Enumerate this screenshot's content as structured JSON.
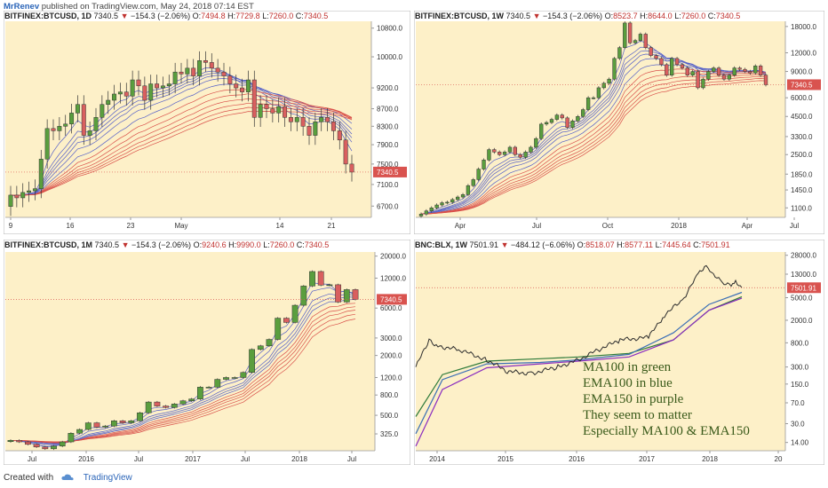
{
  "header": {
    "author": "MrRenev",
    "published": "published on TradingView.com, May 24, 2018 07:14 EST"
  },
  "footer": {
    "created_with": "Created with",
    "brand": "TradingView"
  },
  "colors": {
    "panel_bg": "#fdf0c8",
    "up_candle": "#5a9e3e",
    "down_candle": "#d95f5f",
    "price_tag": "#d9534f",
    "ma_blue": "#5560c8",
    "ma_red": "#d9504a",
    "ma100_green": "#2e7a3a",
    "ema100_blue": "#3b6fb6",
    "ema150_purple": "#8a2cc0",
    "price_line": "#2d2d2d"
  },
  "panels": [
    {
      "id": "btc-1d",
      "symbol": "BITFINEX:BTCUSD, 1D",
      "last": "7340.5",
      "change": "−154.3 (−2.06%)",
      "ohlc": [
        [
          "O:",
          "7494.8"
        ],
        [
          "H:",
          "7729.8"
        ],
        [
          "L:",
          "7260.0"
        ],
        [
          "C:",
          "7340.5"
        ]
      ],
      "price_tag": "7340.5",
      "chart_data": {
        "type": "candlestick",
        "y_ticks": [
          "10800.0",
          "10000.0",
          "9200.0",
          "8700.0",
          "8300.0",
          "7900.0",
          "7500.0",
          "7100.0",
          "6700.0"
        ],
        "x_ticks": [
          "9",
          "16",
          "23",
          "May",
          "14",
          "21"
        ],
        "close": [
          6900,
          6850,
          6950,
          6980,
          7020,
          7600,
          8250,
          8200,
          8300,
          8350,
          8600,
          8800,
          8100,
          8200,
          8500,
          8800,
          8900,
          9050,
          9100,
          9000,
          9400,
          9250,
          8900,
          9300,
          9200,
          9250,
          9300,
          9600,
          9550,
          9700,
          9500,
          9900,
          9850,
          9700,
          9600,
          9500,
          9300,
          9200,
          9100,
          9400,
          8500,
          8800,
          8700,
          8600,
          8750,
          8500,
          8400,
          8500,
          8300,
          8100,
          8400,
          8500,
          8400,
          8200,
          8000,
          7500,
          7340
        ]
      }
    },
    {
      "id": "btc-1w",
      "symbol": "BITFINEX:BTCUSD, 1W",
      "last": "7340.5",
      "change": "−154.3 (−2.06%)",
      "ohlc": [
        [
          "O:",
          "8523.7"
        ],
        [
          "H:",
          "8644.0"
        ],
        [
          "L:",
          "7260.0"
        ],
        [
          "C:",
          "7340.5"
        ]
      ],
      "price_tag": "7340.5",
      "chart_data": {
        "type": "candlestick",
        "y_ticks": [
          "18000.0",
          "12000.0",
          "9000.0",
          "6000.0",
          "4500.0",
          "3300.0",
          "2500.0",
          "1850.0",
          "1450.0",
          "1100.0"
        ],
        "x_ticks": [
          "Apr",
          "Jul",
          "Oct",
          "2018",
          "Apr",
          "Jul"
        ],
        "close": [
          1000,
          1050,
          1100,
          1150,
          1190,
          1200,
          1250,
          1300,
          1350,
          1550,
          1700,
          2000,
          2300,
          2700,
          2600,
          2500,
          2600,
          2800,
          2500,
          2400,
          2600,
          2800,
          3200,
          4000,
          4100,
          4300,
          4600,
          4400,
          3800,
          4200,
          4500,
          5000,
          6000,
          6000,
          7000,
          7500,
          8000,
          11000,
          13000,
          19000,
          14000,
          14500,
          16000,
          13000,
          11500,
          11000,
          10000,
          8500,
          11000,
          10000,
          9500,
          8500,
          9000,
          7000,
          8000,
          9000,
          9500,
          8500,
          8000,
          8500,
          9500,
          9300,
          9000,
          8800,
          9800,
          8500,
          7340
        ]
      }
    },
    {
      "id": "btc-1m",
      "symbol": "BITFINEX:BTCUSD, 1M",
      "last": "7340.5",
      "change": "−154.3 (−2.06%)",
      "ohlc": [
        [
          "O:",
          "9240.6"
        ],
        [
          "H:",
          "9990.0"
        ],
        [
          "L:",
          "7260.0"
        ],
        [
          "C:",
          "7340.5"
        ]
      ],
      "price_tag": "7340.5",
      "chart_data": {
        "type": "candlestick",
        "y_ticks": [
          "20000.0",
          "12000.0",
          "6000.0",
          "3000.0",
          "2000.0",
          "1200.0",
          "800.0",
          "500.0",
          "325.0"
        ],
        "x_ticks": [
          "Jul",
          "2016",
          "Jul",
          "2017",
          "Jul",
          "2018",
          "Jul"
        ],
        "close": [
          280,
          270,
          255,
          240,
          230,
          245,
          270,
          330,
          360,
          420,
          380,
          390,
          440,
          420,
          440,
          530,
          680,
          620,
          600,
          650,
          700,
          730,
          960,
          960,
          1150,
          1200,
          1200,
          1350,
          2300,
          2500,
          2900,
          4750,
          4300,
          6400,
          10000,
          14000,
          10200,
          10300,
          6900,
          9200,
          7340
        ]
      }
    },
    {
      "id": "blx-1w",
      "symbol": "BNC:BLX, 1W",
      "last": "7501.91",
      "change": "−484.12 (−6.06%)",
      "ohlc": [
        [
          "O:",
          "8518.07"
        ],
        [
          "H:",
          "8577.11"
        ],
        [
          "L:",
          "7445.64"
        ],
        [
          "C:",
          "7501.91"
        ]
      ],
      "price_tag": "7501.91",
      "chart_data": {
        "type": "line",
        "y_ticks": [
          "28000.0",
          "13000.0",
          "5000.0",
          "2000.0",
          "800.0",
          "300.0",
          "150.0",
          "70.0",
          "30.0",
          "14.00"
        ],
        "x_ticks": [
          "2014",
          "2015",
          "2016",
          "2017",
          "2018",
          "20"
        ],
        "annotations": [
          "MA100 in green",
          "EMA100 in blue",
          "EMA150 in purple",
          "They seem to matter",
          "Especially MA100 & EMA150"
        ]
      }
    }
  ]
}
